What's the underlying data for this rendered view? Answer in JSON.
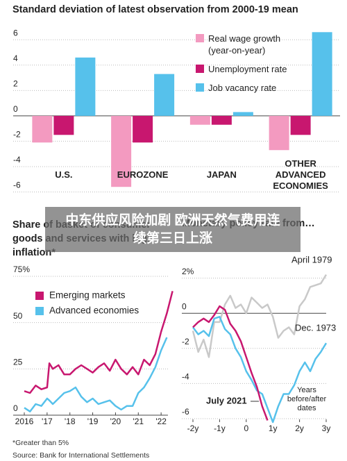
{
  "chart_data": [
    {
      "type": "bar",
      "title": "Standard deviation of latest observation from 2000-19 mean",
      "categories": [
        "U.S.",
        "EUROZONE",
        "JAPAN",
        "OTHER ADVANCED ECONOMIES"
      ],
      "series": [
        {
          "name": "Real wage growth (year-on-year)",
          "color": "#f39ac0",
          "values": [
            -2.1,
            -5.6,
            -0.7,
            -2.7
          ]
        },
        {
          "name": "Unemployment rate",
          "color": "#c8176f",
          "values": [
            -1.5,
            -2.1,
            -0.7,
            -1.5
          ]
        },
        {
          "name": "Job vacancy rate",
          "color": "#56c1eb",
          "values": [
            4.6,
            3.3,
            0.3,
            6.6
          ]
        }
      ],
      "ylim": [
        -6.3,
        7
      ],
      "yticks": [
        -6,
        -4,
        -2,
        0,
        2,
        4,
        6
      ],
      "grid": true,
      "legend": "top-right"
    },
    {
      "type": "line",
      "title": "Share of basket of consumer goods and services with high inflation*",
      "x": [
        2016,
        2016.25,
        2016.5,
        2016.75,
        2017,
        2017.1,
        2017.25,
        2017.5,
        2017.75,
        2018,
        2018.25,
        2018.5,
        2018.75,
        2019,
        2019.25,
        2019.5,
        2019.75,
        2020,
        2020.25,
        2020.5,
        2020.75,
        2021,
        2021.25,
        2021.5,
        2021.75,
        2022,
        2022.25,
        2022.5
      ],
      "series": [
        {
          "name": "Emerging markets",
          "color": "#c8176f",
          "values": [
            13,
            12,
            16,
            14,
            15,
            28,
            25,
            27,
            22,
            22,
            25,
            27,
            25,
            23,
            26,
            28,
            24,
            30,
            25,
            22,
            26,
            22,
            30,
            27,
            33,
            45,
            55,
            67
          ]
        },
        {
          "name": "Advanced economies",
          "color": "#56c1eb",
          "values": [
            4,
            2,
            6,
            5,
            9,
            8,
            6,
            9,
            12,
            13,
            15,
            10,
            7,
            9,
            6,
            7,
            8,
            5,
            3,
            5,
            5,
            12,
            15,
            20,
            26,
            35,
            42,
            null
          ]
        }
      ],
      "xlim": [
        2016,
        2022.3
      ],
      "xticks": [
        2016,
        {
          "value": 2017,
          "label": "'17"
        },
        {
          "value": 2018,
          "label": "'18"
        },
        {
          "value": 2019,
          "label": "'19"
        },
        {
          "value": 2020,
          "label": "'20"
        },
        {
          "value": 2021,
          "label": "'21"
        },
        {
          "value": 2022,
          "label": "'22"
        }
      ],
      "ylim": [
        0,
        75
      ],
      "yticks": [
        0,
        25,
        50,
        {
          "value": 75,
          "label": "75%"
        }
      ],
      "grid": true,
      "legend": "top-left"
    },
    {
      "type": "line",
      "title": "Monetary policy rate from…",
      "x": [
        -2,
        -1.8,
        -1.6,
        -1.4,
        -1.2,
        -1,
        -0.8,
        -0.6,
        -0.4,
        -0.2,
        0,
        0.2,
        0.4,
        0.6,
        0.8,
        1,
        1.2,
        1.4,
        1.6,
        1.8,
        2,
        2.2,
        2.4,
        2.6,
        2.8,
        3
      ],
      "series": [
        {
          "name": "April 1979",
          "color": "#c9c9c9",
          "values": [
            -1,
            -2.2,
            -1.5,
            -2.5,
            -0.5,
            -0.5,
            0.5,
            1.0,
            0.3,
            0.5,
            0,
            0.9,
            0.6,
            0.3,
            0.5,
            -0.2,
            -1.4,
            -1,
            -0.8,
            -1.2,
            0.4,
            0.8,
            1.5,
            1.6,
            1.7,
            2.2
          ]
        },
        {
          "name": "Dec. 1973",
          "color": "#56c1eb",
          "values": [
            -0.8,
            -1.2,
            -1.0,
            -1.3,
            -0.3,
            -0.2,
            -0.9,
            -1.2,
            -2.0,
            -2.5,
            -3.3,
            -3.8,
            -4.4,
            -4.6,
            -5.4,
            -6.2,
            -5.3,
            -4.6,
            -4.6,
            -4.1,
            -3.3,
            -2.8,
            -3.3,
            -2.6,
            -2.2,
            -1.7
          ]
        },
        {
          "name": "July 2021",
          "color": "#c8176f",
          "values": [
            -0.8,
            -0.5,
            -0.3,
            -0.5,
            -0.1,
            0.4,
            0.2,
            -0.6,
            -1.0,
            -1.6,
            -2.5,
            -3.4,
            -4.2,
            -5.3,
            -6.1,
            null,
            null,
            null,
            null,
            null,
            null,
            null,
            null,
            null,
            null,
            null
          ]
        }
      ],
      "xlim": [
        -2,
        3
      ],
      "xticks": [
        {
          "value": -2,
          "label": "-2y"
        },
        {
          "value": -1,
          "label": "-1y"
        },
        0,
        {
          "value": 1,
          "label": "1y"
        },
        {
          "value": 2,
          "label": "2y"
        },
        {
          "value": 3,
          "label": "3y"
        }
      ],
      "ylim": [
        -6.2,
        2.5
      ],
      "yticks": [
        -6,
        -4,
        -2,
        0,
        {
          "value": 2,
          "label": "2%"
        }
      ],
      "grid": true,
      "annotations": [
        "Years before/after dates"
      ]
    }
  ],
  "overlay": {
    "text": "中东供应风险加剧 欧洲天然气费用连续第三日上涨"
  },
  "footnotes": [
    "*Greater than 5%",
    "Source: Bank for International Settlements"
  ]
}
